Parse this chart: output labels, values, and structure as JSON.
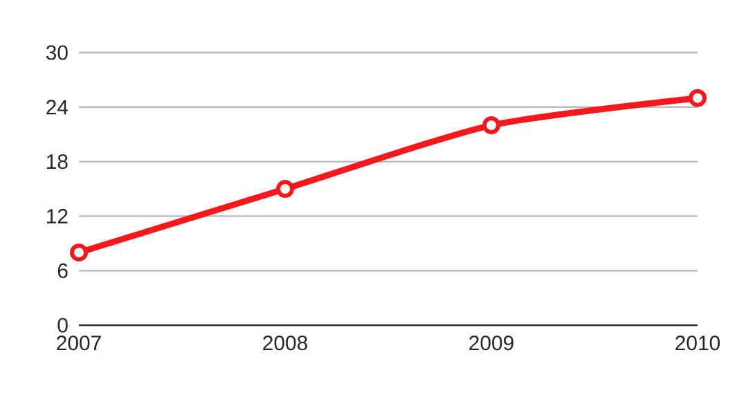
{
  "chart_data": {
    "type": "line",
    "categories": [
      "2007",
      "2008",
      "2009",
      "2010"
    ],
    "series": [
      {
        "color": "#f5191e",
        "values": [
          8,
          15,
          22,
          25
        ]
      }
    ],
    "ylim": [
      0,
      30
    ],
    "yticks": [
      0,
      6,
      12,
      18,
      24,
      30
    ],
    "grid": "y",
    "marker": "circle",
    "line_style": "solid"
  }
}
